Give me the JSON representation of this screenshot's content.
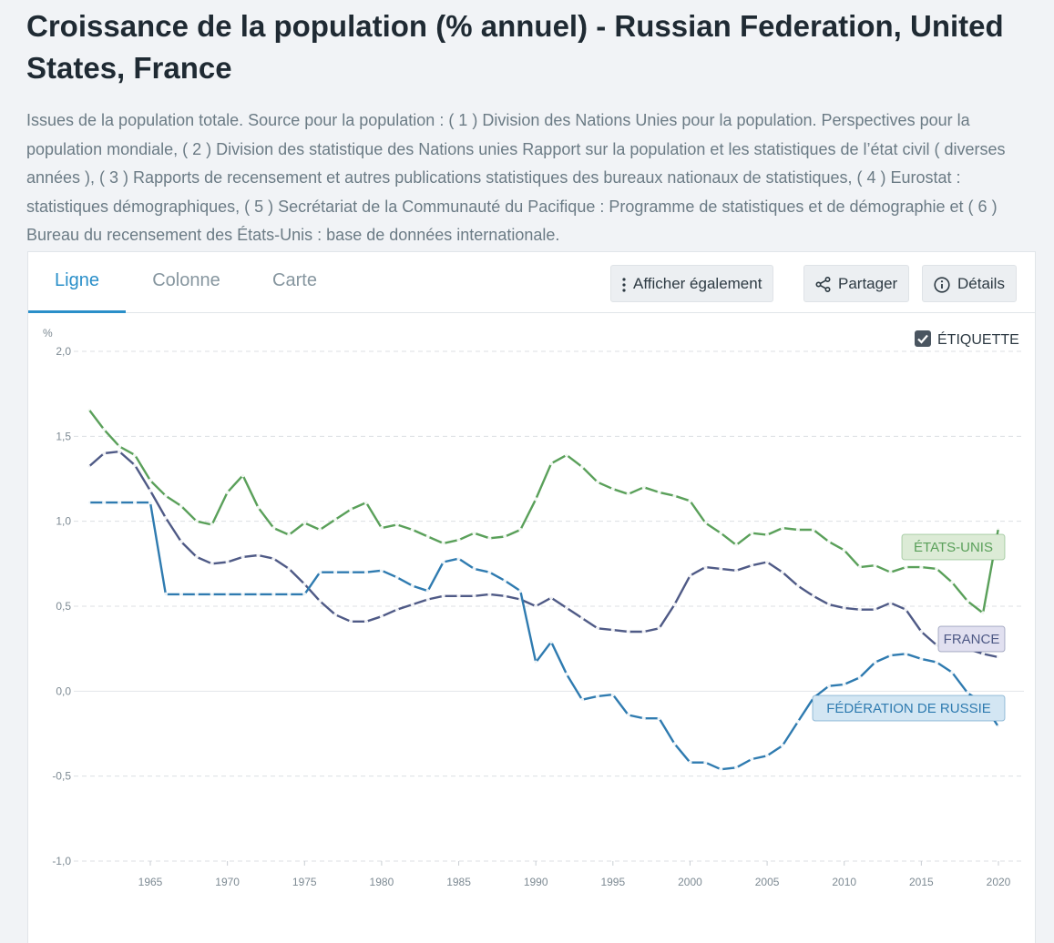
{
  "page": {
    "title": "Croissance de la population (% annuel) - Russian Federation, United States, France",
    "description": "Issues de la population totale. Source pour la population : ( 1 ) Division des Nations Unies pour la population. Perspectives pour la population mondiale, ( 2 ) Division des statistique des Nations unies Rapport sur la population et les statistiques de l’état civil ( diverses années ), ( 3 ) Rapports de recensement et autres publications statistiques des bureaux nationaux de statistiques, ( 4 ) Eurostat : statistiques démographiques, ( 5 ) Secrétariat de la Communauté du Pacifique : Programme de statistiques et de démographie et ( 6 ) Bureau du recensement des États-Unis : base de données internationale."
  },
  "tabs": [
    {
      "label": "Ligne",
      "active": true
    },
    {
      "label": "Colonne",
      "active": false
    },
    {
      "label": "Carte",
      "active": false
    }
  ],
  "toolbar": {
    "show_also": "Afficher également",
    "share": "Partager",
    "details": "Détails"
  },
  "label_toggle": {
    "text": "ÉTIQUETTE",
    "checked": true
  },
  "chart_data": {
    "type": "line",
    "ylabel": "%",
    "ylim": [
      -1.0,
      2.0
    ],
    "yticks": [
      -1.0,
      -0.5,
      0.0,
      0.5,
      1.0,
      1.5,
      2.0
    ],
    "ytick_labels": [
      "-1,0",
      "-0,5",
      "0,0",
      "0,5",
      "1,0",
      "1,5",
      "2,0"
    ],
    "xlim": [
      1960,
      2020
    ],
    "xticks": [
      1965,
      1970,
      1975,
      1980,
      1985,
      1990,
      1995,
      2000,
      2005,
      2010,
      2015,
      2020
    ],
    "grid": true,
    "x": [
      1961,
      1962,
      1963,
      1964,
      1965,
      1966,
      1967,
      1968,
      1969,
      1970,
      1971,
      1972,
      1973,
      1974,
      1975,
      1976,
      1977,
      1978,
      1979,
      1980,
      1981,
      1982,
      1983,
      1984,
      1985,
      1986,
      1987,
      1988,
      1989,
      1990,
      1991,
      1992,
      1993,
      1994,
      1995,
      1996,
      1997,
      1998,
      1999,
      2000,
      2001,
      2002,
      2003,
      2004,
      2005,
      2006,
      2007,
      2008,
      2009,
      2010,
      2011,
      2012,
      2013,
      2014,
      2015,
      2016,
      2017,
      2018,
      2019,
      2020
    ],
    "series": [
      {
        "name": "ÉTATS-UNIS",
        "color": "#5aa05a",
        "label_fill": "#dcebd6",
        "values": [
          1.66,
          1.54,
          1.44,
          1.39,
          1.24,
          1.15,
          1.09,
          1.0,
          0.98,
          1.17,
          1.27,
          1.08,
          0.96,
          0.92,
          0.99,
          0.95,
          1.01,
          1.07,
          1.11,
          0.96,
          0.98,
          0.95,
          0.91,
          0.87,
          0.89,
          0.93,
          0.9,
          0.91,
          0.95,
          1.13,
          1.34,
          1.39,
          1.32,
          1.23,
          1.19,
          1.16,
          1.2,
          1.17,
          1.15,
          1.12,
          0.99,
          0.93,
          0.86,
          0.93,
          0.92,
          0.96,
          0.95,
          0.95,
          0.88,
          0.83,
          0.73,
          0.74,
          0.7,
          0.73,
          0.73,
          0.72,
          0.64,
          0.53,
          0.46,
          0.96
        ]
      },
      {
        "name": "FRANCE",
        "color": "#4f5a86",
        "label_fill": "#e1e0f0",
        "values": [
          1.32,
          1.4,
          1.41,
          1.33,
          1.18,
          1.02,
          0.88,
          0.79,
          0.75,
          0.76,
          0.79,
          0.8,
          0.78,
          0.72,
          0.63,
          0.53,
          0.45,
          0.41,
          0.41,
          0.44,
          0.48,
          0.51,
          0.54,
          0.56,
          0.56,
          0.56,
          0.57,
          0.56,
          0.54,
          0.5,
          0.55,
          0.49,
          0.43,
          0.37,
          0.36,
          0.35,
          0.35,
          0.37,
          0.51,
          0.68,
          0.73,
          0.72,
          0.71,
          0.74,
          0.76,
          0.7,
          0.62,
          0.56,
          0.51,
          0.49,
          0.48,
          0.48,
          0.52,
          0.48,
          0.35,
          0.27,
          0.25,
          0.25,
          0.22,
          0.2
        ]
      },
      {
        "name": "FÉDÉRATION DE RUSSIE",
        "color": "#2f7bb0",
        "label_fill": "#d3e6f3",
        "values": [
          1.11,
          1.11,
          1.11,
          1.11,
          1.11,
          0.57,
          0.57,
          0.57,
          0.57,
          0.57,
          0.57,
          0.57,
          0.57,
          0.57,
          0.57,
          0.7,
          0.7,
          0.7,
          0.7,
          0.71,
          0.67,
          0.62,
          0.59,
          0.76,
          0.78,
          0.72,
          0.7,
          0.65,
          0.59,
          0.17,
          0.29,
          0.1,
          -0.05,
          -0.03,
          -0.02,
          -0.14,
          -0.16,
          -0.16,
          -0.31,
          -0.42,
          -0.42,
          -0.46,
          -0.45,
          -0.4,
          -0.38,
          -0.32,
          -0.18,
          -0.04,
          0.03,
          0.04,
          0.08,
          0.17,
          0.21,
          0.22,
          0.19,
          0.17,
          0.11,
          -0.01,
          -0.07,
          -0.21
        ]
      }
    ]
  }
}
